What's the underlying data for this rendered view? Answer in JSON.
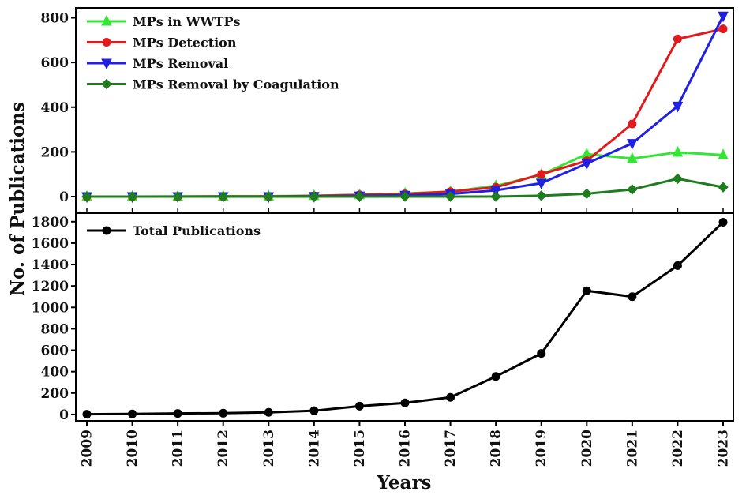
{
  "xlabel": "Years",
  "ylabel": "No. of Publications",
  "x_ticks": [
    "2009",
    "2010",
    "2011",
    "2012",
    "2013",
    "2014",
    "2015",
    "2016",
    "2017",
    "2018",
    "2019",
    "2020",
    "2021",
    "2022",
    "2023"
  ],
  "colors": {
    "mps_wwtps": "#33e633",
    "mps_detection": "#e31a1c",
    "mps_removal": "#1f1fe6",
    "mps_coagulation": "#1e7d1e",
    "total": "#000000",
    "axis": "#000000"
  },
  "chart_data": [
    {
      "type": "line",
      "panel": "top",
      "x": [
        2009,
        2010,
        2011,
        2012,
        2013,
        2014,
        2015,
        2016,
        2017,
        2018,
        2019,
        2020,
        2021,
        2022,
        2023
      ],
      "ylim": [
        -60,
        830
      ],
      "y_ticks": [
        "0",
        "200",
        "400",
        "600",
        "800"
      ],
      "y_tick_values": [
        0,
        200,
        400,
        600,
        800
      ],
      "grid": false,
      "legend_placement": "top-left",
      "series": [
        {
          "name": "MPs in WWTPs",
          "marker": "triangle-up",
          "color_key": "mps_wwtps",
          "values": [
            0,
            0,
            1,
            2,
            2,
            4,
            8,
            14,
            22,
            48,
            98,
            190,
            170,
            198,
            186
          ]
        },
        {
          "name": "MPs Detection",
          "marker": "circle",
          "color_key": "mps_detection",
          "values": [
            0,
            0,
            0,
            1,
            1,
            3,
            8,
            12,
            22,
            42,
            100,
            160,
            325,
            705,
            750
          ]
        },
        {
          "name": "MPs Removal",
          "marker": "triangle-down",
          "color_key": "mps_removal",
          "values": [
            0,
            0,
            0,
            0,
            0,
            1,
            3,
            6,
            12,
            28,
            60,
            148,
            238,
            405,
            808
          ]
        },
        {
          "name": "MPs Removal by Coagulation",
          "marker": "diamond",
          "color_key": "mps_coagulation",
          "values": [
            0,
            0,
            0,
            0,
            0,
            0,
            0,
            0,
            0,
            0,
            4,
            13,
            32,
            80,
            42
          ]
        }
      ]
    },
    {
      "type": "line",
      "panel": "bottom",
      "x": [
        2009,
        2010,
        2011,
        2012,
        2013,
        2014,
        2015,
        2016,
        2017,
        2018,
        2019,
        2020,
        2021,
        2022,
        2023
      ],
      "ylim": [
        -30,
        1850
      ],
      "y_ticks": [
        "0",
        "200",
        "400",
        "600",
        "800",
        "1000",
        "1200",
        "1400",
        "1600",
        "1800"
      ],
      "y_tick_values": [
        0,
        200,
        400,
        600,
        800,
        1000,
        1200,
        1400,
        1600,
        1800
      ],
      "grid": false,
      "legend_placement": "top-left",
      "series": [
        {
          "name": "Total Publications",
          "marker": "circle",
          "color_key": "total",
          "values": [
            2,
            5,
            10,
            12,
            20,
            35,
            78,
            108,
            160,
            355,
            570,
            1155,
            1100,
            1390,
            1795
          ]
        }
      ]
    }
  ]
}
